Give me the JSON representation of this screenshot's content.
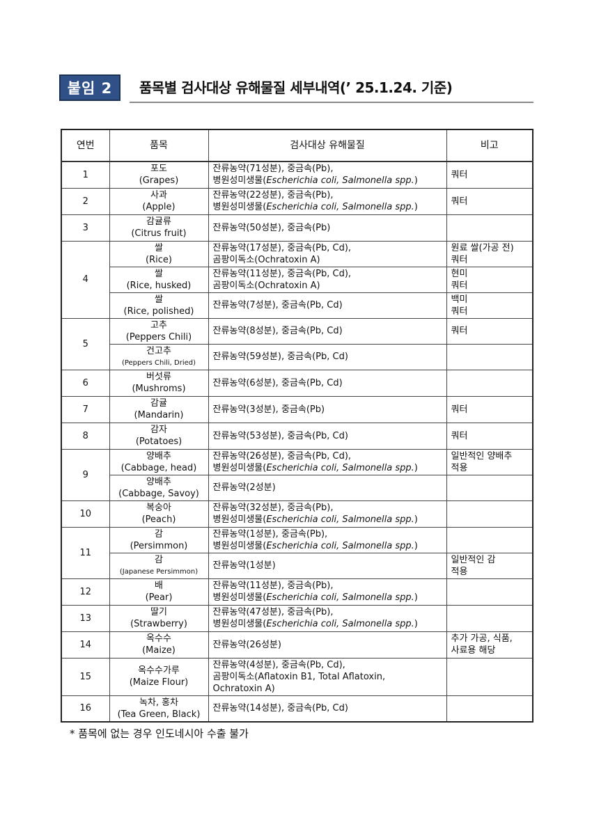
{
  "header": {
    "badge": "붙임 2",
    "title": "품목별 검사대상 유해물질 세부내역(’ 25.1.24. 기준)"
  },
  "table": {
    "columns": [
      "연번",
      "품목",
      "검사대상 유해물질",
      "비고"
    ],
    "groups": [
      {
        "no": "1",
        "items": [
          {
            "name": "포도",
            "name_en": "(Grapes)",
            "substances": [
              [
                "잔류농약(71성분), 중금속(Pb),"
              ],
              [
                "병원성미생물(",
                {
                  "i": "Escherichia coli,  Salmonella spp."
                },
                ")"
              ]
            ],
            "note": [
              "쿼터"
            ]
          }
        ]
      },
      {
        "no": "2",
        "items": [
          {
            "name": "사과",
            "name_en": "(Apple)",
            "substances": [
              [
                "잔류농약(22성분), 중금속(Pb),"
              ],
              [
                "병원성미생물(",
                {
                  "i": "Escherichia coli,  Salmonella spp."
                },
                ")"
              ]
            ],
            "note": [
              "쿼터"
            ]
          }
        ]
      },
      {
        "no": "3",
        "items": [
          {
            "name": "감귤류",
            "name_en": "(Citrus fruit)",
            "substances": [
              [
                "잔류농약(50성분), 중금속(Pb)"
              ]
            ],
            "note": []
          }
        ]
      },
      {
        "no": "4",
        "items": [
          {
            "name": "쌀",
            "name_en": "(Rice)",
            "substances": [
              [
                "잔류농약(17성분), 중금속(Pb, Cd),"
              ],
              [
                "곰팡이독소(Ochratoxin A)"
              ]
            ],
            "note": [
              "원료 쌀(가공 전)",
              "쿼터"
            ]
          },
          {
            "name": "쌀",
            "name_en": "(Rice, husked)",
            "substances": [
              [
                "잔류농약(11성분), 중금속(Pb, Cd),"
              ],
              [
                "곰팡이독소(Ochratoxin A)"
              ]
            ],
            "note": [
              "현미",
              "쿼터"
            ]
          },
          {
            "name": "쌀",
            "name_en": "(Rice, polished)",
            "substances": [
              [
                "잔류농약(7성분), 중금속(Pb, Cd)"
              ]
            ],
            "note": [
              "백미",
              "쿼터"
            ]
          }
        ]
      },
      {
        "no": "5",
        "items": [
          {
            "name": "고추",
            "name_en": "(Peppers Chili)",
            "substances": [
              [
                "잔류농약(8성분), 중금속(Pb, Cd)"
              ]
            ],
            "note": [
              "쿼터"
            ]
          },
          {
            "name": "건고추",
            "name_en": "(Peppers Chili, Dried)",
            "small": true,
            "substances": [
              [
                "잔류농약(59성분), 중금속(Pb, Cd)"
              ]
            ],
            "note": []
          }
        ]
      },
      {
        "no": "6",
        "items": [
          {
            "name": "버섯류",
            "name_en": "(Mushroms)",
            "substances": [
              [
                "잔류농약(6성분), 중금속(Pb, Cd)"
              ]
            ],
            "note": []
          }
        ]
      },
      {
        "no": "7",
        "items": [
          {
            "name": "감귤",
            "name_en": "(Mandarin)",
            "substances": [
              [
                "잔류농약(3성분), 중금속(Pb)"
              ]
            ],
            "note": [
              "쿼터"
            ]
          }
        ]
      },
      {
        "no": "8",
        "items": [
          {
            "name": "감자",
            "name_en": "(Potatoes)",
            "substances": [
              [
                "잔류농약(53성분), 중금속(Pb, Cd)"
              ]
            ],
            "note": [
              "쿼터"
            ]
          }
        ]
      },
      {
        "no": "9",
        "items": [
          {
            "name": "양배추",
            "name_en": "(Cabbage, head)",
            "substances": [
              [
                "잔류농약(26성분), 중금속(Pb, Cd),"
              ],
              [
                "병원성미생물(",
                {
                  "i": "Escherichia coli,  Salmonella spp."
                },
                ")"
              ]
            ],
            "note": [
              "일반적인 양배추",
              "적용"
            ]
          },
          {
            "name": "양배추",
            "name_en": "(Cabbage, Savoy)",
            "substances": [
              [
                "잔류농약(2성분)"
              ]
            ],
            "note": []
          }
        ]
      },
      {
        "no": "10",
        "items": [
          {
            "name": "복숭아",
            "name_en": "(Peach)",
            "substances": [
              [
                "잔류농약(32성분), 중금속(Pb),"
              ],
              [
                "병원성미생물(",
                {
                  "i": "Escherichia coli,  Salmonella spp."
                },
                ")"
              ]
            ],
            "note": []
          }
        ]
      },
      {
        "no": "11",
        "items": [
          {
            "name": "감",
            "name_en": "(Persimmon)",
            "substances": [
              [
                "잔류농약(1성분), 중금속(Pb),"
              ],
              [
                "병원성미생물(",
                {
                  "i": "Escherichia coli,  Salmonella spp."
                },
                ")"
              ]
            ],
            "note": []
          },
          {
            "name": "감",
            "name_en": "(Japanese Persimmon)",
            "small": true,
            "substances": [
              [
                "잔류농약(1성분)"
              ]
            ],
            "note": [
              "일반적인 감",
              "적용"
            ]
          }
        ]
      },
      {
        "no": "12",
        "items": [
          {
            "name": "배",
            "name_en": "(Pear)",
            "substances": [
              [
                "잔류농약(11성분), 중금속(Pb),"
              ],
              [
                "병원성미생물(",
                {
                  "i": "Escherichia coli,  Salmonella spp."
                },
                ")"
              ]
            ],
            "note": []
          }
        ]
      },
      {
        "no": "13",
        "items": [
          {
            "name": "딸기",
            "name_en": "(Strawberry)",
            "substances": [
              [
                "잔류농약(47성분), 중금속(Pb),"
              ],
              [
                "병원성미생물(",
                {
                  "i": "Escherichia coli,  Salmonella spp."
                },
                ")"
              ]
            ],
            "note": []
          }
        ]
      },
      {
        "no": "14",
        "items": [
          {
            "name": "옥수수",
            "name_en": "(Maize)",
            "substances": [
              [
                "잔류농약(26성분)"
              ]
            ],
            "note": [
              "추가 가공, 식품,",
              "사료용 해당"
            ]
          }
        ]
      },
      {
        "no": "15",
        "items": [
          {
            "name": "옥수수가루",
            "name_en": "(Maize Flour)",
            "substances": [
              [
                "잔류농약(4성분), 중금속(Pb, Cd),"
              ],
              [
                "곰팡이독소(Aflatoxin  B1,  Total  Aflatoxin,"
              ],
              [
                "Ochratoxin A)"
              ]
            ],
            "note": []
          }
        ]
      },
      {
        "no": "16",
        "items": [
          {
            "name": "녹차, 홍차",
            "name_en": "(Tea Green, Black)",
            "substances": [
              [
                "잔류농약(14성분), 중금속(Pb, Cd)"
              ]
            ],
            "note": []
          }
        ]
      }
    ]
  },
  "footnote": "* 품목에 없는 경우 인도네시아 수출 불가"
}
